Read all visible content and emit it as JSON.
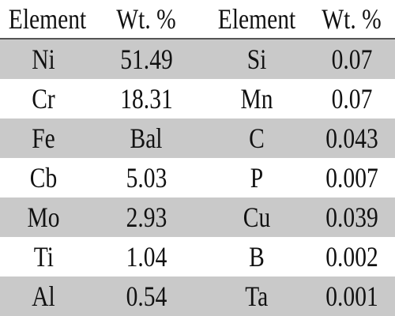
{
  "table": {
    "header": [
      "Element",
      "Wt. %",
      "Element",
      "Wt. %"
    ],
    "rows": [
      [
        "Ni",
        "51.49",
        "Si",
        "0.07"
      ],
      [
        "Cr",
        "18.31",
        "Mn",
        "0.07"
      ],
      [
        "Fe",
        "Bal",
        "C",
        "0.043"
      ],
      [
        "Cb",
        "5.03",
        "P",
        "0.007"
      ],
      [
        "Mo",
        "2.93",
        "Cu",
        "0.039"
      ],
      [
        "Ti",
        "1.04",
        "B",
        "0.002"
      ],
      [
        "Al",
        "0.54",
        "Ta",
        "0.001"
      ]
    ]
  }
}
